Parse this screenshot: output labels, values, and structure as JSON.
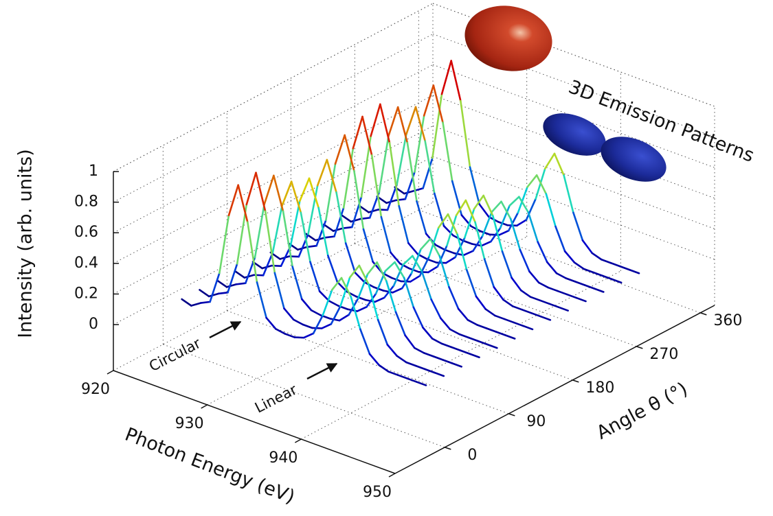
{
  "chart_data": {
    "type": "waterfall3d",
    "x_label": "Photon Energy (eV)",
    "y_label": "Angle θ (°)",
    "z_label": "Intensity (arb. units)",
    "annotations": [
      "Circular",
      "Linear",
      "3D Emission Patterns"
    ],
    "x": [
      922,
      923,
      924,
      925,
      926,
      927,
      928,
      929,
      930,
      931,
      932,
      933,
      934,
      935,
      936,
      937,
      938,
      939,
      940,
      941,
      942,
      943,
      944,
      945,
      946,
      947,
      948
    ],
    "angles": [
      0,
      25,
      50,
      75,
      100,
      125,
      150,
      175,
      200,
      225,
      250,
      275,
      300
    ],
    "series": [
      {
        "values": [
          0.04,
          0.02,
          0.06,
          0.09,
          0.3,
          0.7,
          0.92,
          0.7,
          0.33,
          0.12,
          0.07,
          0.06,
          0.06,
          0.08,
          0.13,
          0.27,
          0.46,
          0.56,
          0.46,
          0.27,
          0.13,
          0.08,
          0.06,
          0.06,
          0.06,
          0.06,
          0.06
        ]
      },
      {
        "values": [
          0.04,
          0.02,
          0.06,
          0.09,
          0.3,
          0.71,
          0.94,
          0.71,
          0.33,
          0.12,
          0.07,
          0.06,
          0.06,
          0.08,
          0.13,
          0.27,
          0.48,
          0.58,
          0.48,
          0.27,
          0.13,
          0.08,
          0.06,
          0.06,
          0.06,
          0.06,
          0.06
        ]
      },
      {
        "values": [
          0.04,
          0.02,
          0.06,
          0.09,
          0.28,
          0.65,
          0.86,
          0.65,
          0.31,
          0.12,
          0.07,
          0.06,
          0.06,
          0.07,
          0.13,
          0.26,
          0.44,
          0.54,
          0.44,
          0.26,
          0.13,
          0.07,
          0.06,
          0.06,
          0.06,
          0.06,
          0.06
        ]
      },
      {
        "values": [
          0.04,
          0.02,
          0.06,
          0.08,
          0.25,
          0.58,
          0.76,
          0.58,
          0.28,
          0.11,
          0.07,
          0.06,
          0.06,
          0.07,
          0.12,
          0.23,
          0.4,
          0.48,
          0.4,
          0.23,
          0.12,
          0.07,
          0.06,
          0.06,
          0.06,
          0.06,
          0.06
        ]
      },
      {
        "values": [
          0.04,
          0.02,
          0.06,
          0.08,
          0.23,
          0.55,
          0.72,
          0.55,
          0.26,
          0.11,
          0.07,
          0.06,
          0.06,
          0.07,
          0.12,
          0.22,
          0.38,
          0.46,
          0.38,
          0.22,
          0.12,
          0.07,
          0.06,
          0.06,
          0.06,
          0.06,
          0.06
        ]
      },
      {
        "values": [
          0.04,
          0.02,
          0.06,
          0.08,
          0.25,
          0.59,
          0.78,
          0.59,
          0.28,
          0.11,
          0.07,
          0.06,
          0.06,
          0.07,
          0.12,
          0.24,
          0.42,
          0.51,
          0.42,
          0.24,
          0.12,
          0.07,
          0.06,
          0.06,
          0.06,
          0.06,
          0.06
        ]
      },
      {
        "values": [
          0.04,
          0.02,
          0.06,
          0.09,
          0.28,
          0.67,
          0.88,
          0.67,
          0.31,
          0.12,
          0.07,
          0.06,
          0.06,
          0.08,
          0.14,
          0.29,
          0.5,
          0.61,
          0.5,
          0.29,
          0.14,
          0.08,
          0.06,
          0.06,
          0.06,
          0.06,
          0.06
        ]
      },
      {
        "values": [
          0.04,
          0.02,
          0.06,
          0.09,
          0.3,
          0.71,
          0.94,
          0.71,
          0.33,
          0.12,
          0.07,
          0.06,
          0.06,
          0.08,
          0.14,
          0.3,
          0.52,
          0.64,
          0.52,
          0.3,
          0.14,
          0.08,
          0.06,
          0.06,
          0.06,
          0.06,
          0.06
        ]
      },
      {
        "values": [
          0.04,
          0.02,
          0.06,
          0.09,
          0.31,
          0.73,
          0.96,
          0.73,
          0.34,
          0.12,
          0.07,
          0.06,
          0.06,
          0.08,
          0.14,
          0.29,
          0.5,
          0.61,
          0.5,
          0.29,
          0.14,
          0.08,
          0.06,
          0.06,
          0.06,
          0.06,
          0.06
        ]
      },
      {
        "values": [
          0.04,
          0.02,
          0.06,
          0.09,
          0.28,
          0.67,
          0.88,
          0.67,
          0.31,
          0.12,
          0.07,
          0.06,
          0.06,
          0.07,
          0.12,
          0.24,
          0.42,
          0.51,
          0.42,
          0.24,
          0.12,
          0.07,
          0.06,
          0.06,
          0.06,
          0.06,
          0.06
        ]
      },
      {
        "values": [
          0.04,
          0.02,
          0.06,
          0.08,
          0.27,
          0.62,
          0.82,
          0.62,
          0.3,
          0.11,
          0.07,
          0.06,
          0.06,
          0.07,
          0.12,
          0.23,
          0.4,
          0.48,
          0.4,
          0.23,
          0.12,
          0.07,
          0.06,
          0.06,
          0.06,
          0.06,
          0.06
        ]
      },
      {
        "values": [
          0.04,
          0.02,
          0.06,
          0.09,
          0.29,
          0.68,
          0.9,
          0.68,
          0.32,
          0.12,
          0.07,
          0.06,
          0.06,
          0.08,
          0.13,
          0.27,
          0.46,
          0.56,
          0.46,
          0.27,
          0.13,
          0.08,
          0.06,
          0.06,
          0.06,
          0.06,
          0.06
        ]
      },
      {
        "values": [
          0.04,
          0.02,
          0.06,
          0.1,
          0.32,
          0.76,
          1.0,
          0.76,
          0.35,
          0.13,
          0.07,
          0.06,
          0.06,
          0.08,
          0.14,
          0.3,
          0.52,
          0.64,
          0.52,
          0.3,
          0.14,
          0.08,
          0.06,
          0.06,
          0.06,
          0.06,
          0.06
        ]
      }
    ],
    "xlim": [
      920,
      950
    ],
    "xticks": [
      920,
      930,
      940,
      950
    ],
    "ylim": [
      -70,
      380
    ],
    "yticks": [
      0,
      90,
      180,
      270,
      360
    ],
    "zlim": [
      -0.3,
      1
    ],
    "zticks": [
      0,
      0.2,
      0.4,
      0.6,
      0.8,
      1
    ],
    "grid": true,
    "colormap": "jet"
  }
}
